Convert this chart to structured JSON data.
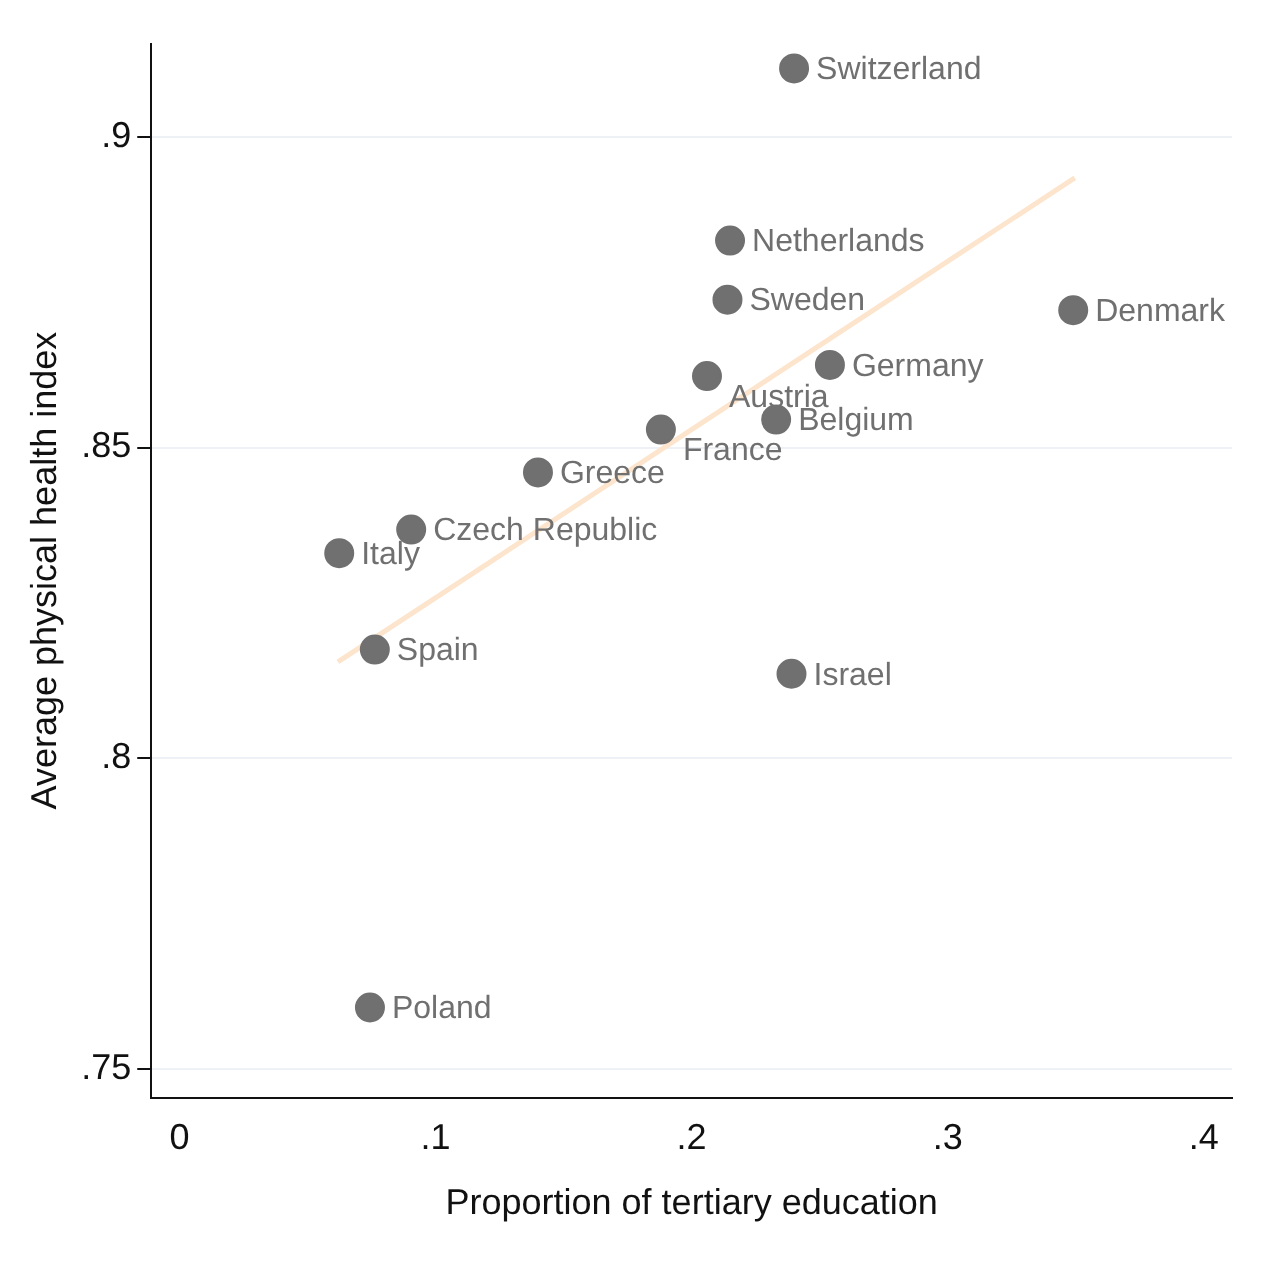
{
  "chart_data": {
    "type": "scatter",
    "xlabel": "Proportion of tertiary education",
    "ylabel": "Average physical health index",
    "xlim": [
      -0.011,
      0.411
    ],
    "ylim": [
      0.7454,
      0.915
    ],
    "xticks": [
      {
        "value": 0,
        "label": "0"
      },
      {
        "value": 0.1,
        "label": ".1"
      },
      {
        "value": 0.2,
        "label": ".2"
      },
      {
        "value": 0.3,
        "label": ".3"
      },
      {
        "value": 0.4,
        "label": ".4"
      }
    ],
    "yticks": [
      {
        "value": 0.75,
        "label": ".75"
      },
      {
        "value": 0.8,
        "label": ".8"
      },
      {
        "value": 0.85,
        "label": ".85"
      },
      {
        "value": 0.9,
        "label": ".9"
      }
    ],
    "grid": "y",
    "legend": false,
    "marker": "circle",
    "series": [
      {
        "color": "#707070",
        "x": [
          0.24,
          0.215,
          0.214,
          0.349,
          0.206,
          0.254,
          0.233,
          0.188,
          0.14,
          0.0905,
          0.0624,
          0.0763,
          0.239,
          0.0744
        ],
        "values": [
          0.911,
          0.8833,
          0.8738,
          0.8721,
          0.8615,
          0.8633,
          0.8545,
          0.8529,
          0.846,
          0.8368,
          0.833,
          0.8175,
          0.8136,
          0.7599
        ]
      },
      {
        "type": "line",
        "color": "#fde4cc",
        "x": [
          0.0619,
          0.3496
        ],
        "values": [
          0.8155,
          0.8934
        ],
        "marker": "none"
      }
    ],
    "annotations": [
      {
        "text": "Switzerland",
        "x": 0.24,
        "y": 0.911
      },
      {
        "text": "Netherlands",
        "x": 0.215,
        "y": 0.8833
      },
      {
        "text": "Sweden",
        "x": 0.214,
        "y": 0.8738
      },
      {
        "text": "Denmark",
        "x": 0.349,
        "y": 0.8721
      },
      {
        "text": "Austria",
        "x": 0.206,
        "y": 0.8615
      },
      {
        "text": "Germany",
        "x": 0.254,
        "y": 0.8633
      },
      {
        "text": "Belgium",
        "x": 0.233,
        "y": 0.8545
      },
      {
        "text": "France",
        "x": 0.188,
        "y": 0.8529
      },
      {
        "text": "Greece",
        "x": 0.14,
        "y": 0.846
      },
      {
        "text": "Czech Republic",
        "x": 0.0905,
        "y": 0.8368
      },
      {
        "text": "Italy",
        "x": 0.0624,
        "y": 0.833
      },
      {
        "text": "Spain",
        "x": 0.0763,
        "y": 0.8175
      },
      {
        "text": "Israel",
        "x": 0.239,
        "y": 0.8136
      },
      {
        "text": "Poland",
        "x": 0.0744,
        "y": 0.7599
      }
    ]
  }
}
